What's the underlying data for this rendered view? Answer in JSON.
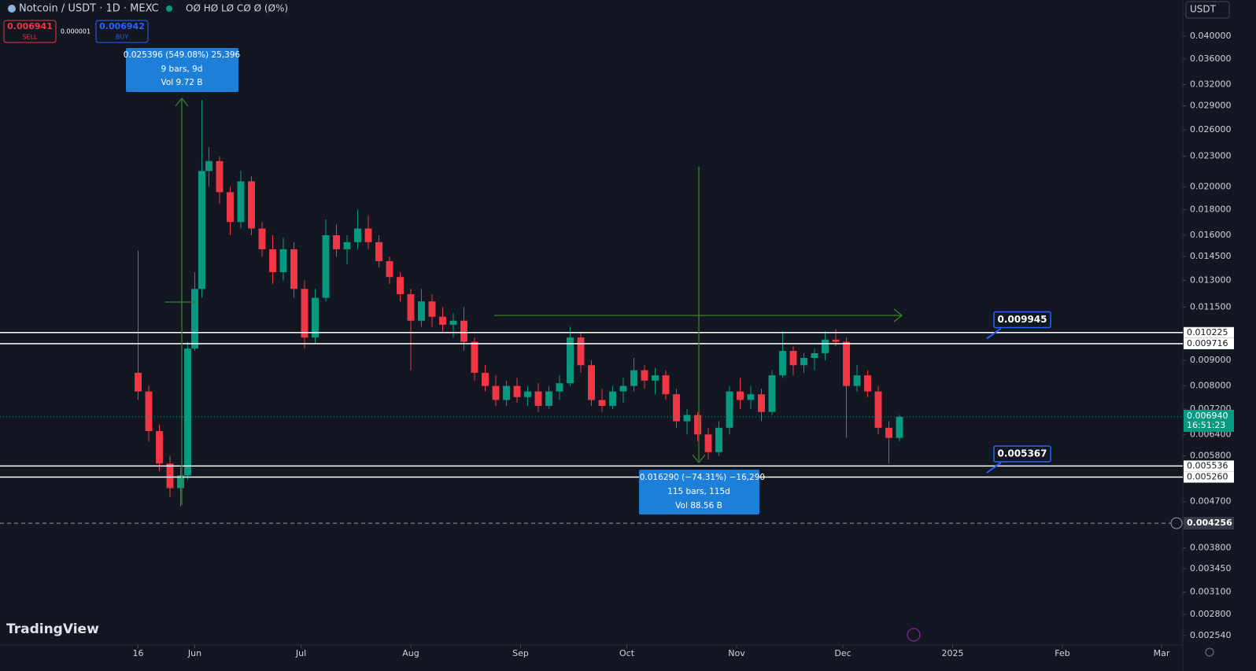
{
  "header": {
    "symbol": "Notcoin / USDT · 1D · MEXC",
    "ohlc": "OØ HØ LØ CØ Ø (Ø%)",
    "sell_price": "0.006941",
    "sell_label": "SELL",
    "spread": "0.000001",
    "buy_price": "0.006942",
    "buy_label": "BUY",
    "currency": "USDT"
  },
  "chart_data": {
    "type": "candlestick",
    "log_scale": true,
    "up_color": "#089981",
    "down_color": "#f23645",
    "x": [
      0,
      3,
      6,
      9,
      12,
      14,
      16,
      18,
      20,
      23,
      26,
      29,
      32,
      35,
      38,
      41,
      44,
      47,
      50,
      53,
      56,
      59,
      62,
      65,
      68,
      71,
      74,
      77,
      80,
      83,
      86,
      89,
      92,
      95,
      98,
      101,
      104,
      107,
      110,
      113,
      116,
      119,
      122,
      125,
      128,
      131,
      134,
      137,
      140,
      143,
      146,
      149,
      152,
      155,
      158,
      161,
      164,
      167,
      170,
      173,
      176,
      179,
      182,
      185,
      188,
      191,
      194,
      197,
      200,
      203,
      206,
      209,
      212,
      215
    ],
    "candles": [
      [
        0.0085,
        0.0149,
        0.0075,
        0.0078
      ],
      [
        0.0078,
        0.008,
        0.0062,
        0.0065
      ],
      [
        0.0065,
        0.0067,
        0.0054,
        0.0056
      ],
      [
        0.0056,
        0.0058,
        0.0048,
        0.005
      ],
      [
        0.005,
        0.0055,
        0.0046,
        0.0053
      ],
      [
        0.0053,
        0.0098,
        0.0052,
        0.0095
      ],
      [
        0.0095,
        0.0135,
        0.0094,
        0.0125
      ],
      [
        0.0125,
        0.0298,
        0.012,
        0.0215
      ],
      [
        0.0215,
        0.024,
        0.02,
        0.0225
      ],
      [
        0.0225,
        0.023,
        0.0185,
        0.0195
      ],
      [
        0.0195,
        0.02,
        0.016,
        0.017
      ],
      [
        0.017,
        0.0215,
        0.0165,
        0.0205
      ],
      [
        0.0205,
        0.021,
        0.016,
        0.0165
      ],
      [
        0.0165,
        0.017,
        0.0145,
        0.015
      ],
      [
        0.015,
        0.016,
        0.0128,
        0.0135
      ],
      [
        0.0135,
        0.0158,
        0.013,
        0.015
      ],
      [
        0.015,
        0.0155,
        0.012,
        0.0125
      ],
      [
        0.0125,
        0.013,
        0.0095,
        0.01
      ],
      [
        0.01,
        0.0125,
        0.0097,
        0.012
      ],
      [
        0.012,
        0.0172,
        0.0118,
        0.016
      ],
      [
        0.016,
        0.0168,
        0.0145,
        0.015
      ],
      [
        0.015,
        0.016,
        0.014,
        0.0155
      ],
      [
        0.0155,
        0.018,
        0.015,
        0.0165
      ],
      [
        0.0165,
        0.0175,
        0.015,
        0.0155
      ],
      [
        0.0155,
        0.016,
        0.0138,
        0.0142
      ],
      [
        0.0142,
        0.0145,
        0.0128,
        0.0132
      ],
      [
        0.0132,
        0.0135,
        0.0118,
        0.0122
      ],
      [
        0.0122,
        0.0125,
        0.0086,
        0.0108
      ],
      [
        0.0108,
        0.0125,
        0.0105,
        0.0118
      ],
      [
        0.0118,
        0.0122,
        0.0105,
        0.011
      ],
      [
        0.011,
        0.0115,
        0.0102,
        0.0106
      ],
      [
        0.0106,
        0.0112,
        0.01,
        0.0108
      ],
      [
        0.0108,
        0.0115,
        0.0094,
        0.0098
      ],
      [
        0.0098,
        0.01,
        0.0082,
        0.0085
      ],
      [
        0.0085,
        0.0088,
        0.0078,
        0.008
      ],
      [
        0.008,
        0.0084,
        0.0073,
        0.0075
      ],
      [
        0.0075,
        0.0082,
        0.0073,
        0.008
      ],
      [
        0.008,
        0.0083,
        0.0074,
        0.0076
      ],
      [
        0.0076,
        0.008,
        0.0073,
        0.0078
      ],
      [
        0.0078,
        0.0081,
        0.0071,
        0.0073
      ],
      [
        0.0073,
        0.008,
        0.0072,
        0.0078
      ],
      [
        0.0078,
        0.0084,
        0.0075,
        0.0081
      ],
      [
        0.0081,
        0.0105,
        0.008,
        0.01
      ],
      [
        0.01,
        0.0102,
        0.0085,
        0.0088
      ],
      [
        0.0088,
        0.009,
        0.0073,
        0.0075
      ],
      [
        0.0075,
        0.0079,
        0.0071,
        0.0073
      ],
      [
        0.0073,
        0.008,
        0.0072,
        0.0078
      ],
      [
        0.0078,
        0.0083,
        0.0074,
        0.008
      ],
      [
        0.008,
        0.0091,
        0.0078,
        0.0086
      ],
      [
        0.0086,
        0.0088,
        0.0079,
        0.0082
      ],
      [
        0.0082,
        0.0087,
        0.0077,
        0.0084
      ],
      [
        0.0084,
        0.0086,
        0.0075,
        0.0077
      ],
      [
        0.0077,
        0.0079,
        0.0066,
        0.0068
      ],
      [
        0.0068,
        0.0072,
        0.0064,
        0.007
      ],
      [
        0.007,
        0.0071,
        0.0062,
        0.0064
      ],
      [
        0.0064,
        0.0066,
        0.0057,
        0.0059
      ],
      [
        0.0059,
        0.0068,
        0.0058,
        0.0066
      ],
      [
        0.0066,
        0.008,
        0.0064,
        0.0078
      ],
      [
        0.0078,
        0.0083,
        0.0072,
        0.0075
      ],
      [
        0.0075,
        0.008,
        0.0072,
        0.0077
      ],
      [
        0.0077,
        0.0079,
        0.0068,
        0.0071
      ],
      [
        0.0071,
        0.0086,
        0.007,
        0.0084
      ],
      [
        0.0084,
        0.0103,
        0.0083,
        0.0094
      ],
      [
        0.0094,
        0.0096,
        0.0084,
        0.0088
      ],
      [
        0.0088,
        0.0093,
        0.0085,
        0.0091
      ],
      [
        0.0091,
        0.0095,
        0.0086,
        0.0093
      ],
      [
        0.0093,
        0.0103,
        0.009,
        0.0099
      ],
      [
        0.0099,
        0.0104,
        0.0096,
        0.0098
      ],
      [
        0.0098,
        0.01,
        0.0063,
        0.008
      ],
      [
        0.008,
        0.0088,
        0.0078,
        0.0084
      ],
      [
        0.0084,
        0.0086,
        0.0076,
        0.0078
      ],
      [
        0.0078,
        0.008,
        0.0064,
        0.0066
      ],
      [
        0.0066,
        0.0068,
        0.0056,
        0.0063
      ],
      [
        0.0063,
        0.007,
        0.0062,
        0.00694
      ]
    ],
    "xlim": [
      -39,
      295
    ],
    "xticks": [
      {
        "value": 0,
        "label": "16"
      },
      {
        "value": 16,
        "label": "Jun"
      },
      {
        "value": 46,
        "label": "Jul"
      },
      {
        "value": 77,
        "label": "Aug"
      },
      {
        "value": 108,
        "label": "Sep"
      },
      {
        "value": 138,
        "label": "Oct"
      },
      {
        "value": 169,
        "label": "Nov"
      },
      {
        "value": 199,
        "label": "Dec"
      },
      {
        "value": 230,
        "label": "2025"
      },
      {
        "value": 261,
        "label": "Feb"
      },
      {
        "value": 289,
        "label": "Mar"
      }
    ],
    "ylim": [
      0.00243,
      0.0472
    ],
    "yticks": [
      {
        "value": 0.04,
        "label": "0.040000"
      },
      {
        "value": 0.036,
        "label": "0.036000"
      },
      {
        "value": 0.032,
        "label": "0.032000"
      },
      {
        "value": 0.029,
        "label": "0.029000"
      },
      {
        "value": 0.026,
        "label": "0.026000"
      },
      {
        "value": 0.023,
        "label": "0.023000"
      },
      {
        "value": 0.02,
        "label": "0.020000"
      },
      {
        "value": 0.018,
        "label": "0.018000"
      },
      {
        "value": 0.016,
        "label": "0.016000"
      },
      {
        "value": 0.0145,
        "label": "0.014500"
      },
      {
        "value": 0.013,
        "label": "0.013000"
      },
      {
        "value": 0.0115,
        "label": "0.011500"
      },
      {
        "value": 0.009,
        "label": "0.009000"
      },
      {
        "value": 0.008,
        "label": "0.008000"
      },
      {
        "value": 0.0072,
        "label": "0.007200"
      },
      {
        "value": 0.0064,
        "label": "0.006400"
      },
      {
        "value": 0.0058,
        "label": "0.005800"
      },
      {
        "value": 0.0047,
        "label": "0.004700"
      },
      {
        "value": 0.0038,
        "label": "0.003800"
      },
      {
        "value": 0.00345,
        "label": "0.003450"
      },
      {
        "value": 0.0031,
        "label": "0.003100"
      },
      {
        "value": 0.0028,
        "label": "0.002800"
      },
      {
        "value": 0.00254,
        "label": "0.002540"
      }
    ],
    "hlines": [
      {
        "value": 0.010225,
        "label": "0.010225"
      },
      {
        "value": 0.009716,
        "label": "0.009716"
      },
      {
        "value": 0.005536,
        "label": "0.005536"
      },
      {
        "value": 0.00526,
        "label": "0.005260"
      }
    ],
    "alerts": [
      {
        "value": 0.009945,
        "label": "0.009945"
      },
      {
        "value": 0.005367,
        "label": "0.005367"
      }
    ],
    "last_price": {
      "value": 0.00694,
      "label": "0.006940"
    },
    "countdown": "16:51:23",
    "crosshair": {
      "value": 0.004256,
      "label": "0.004256"
    },
    "measurements": [
      [
        "0.025396 (549.08%) 25,396",
        "9 bars, 9d",
        "Vol 9.72 B"
      ],
      [
        "−0.016290 (−74.31%) −16,290",
        "115 bars, 115d",
        "Vol 88.56 B"
      ]
    ]
  },
  "footer": {
    "logo": "TradingView"
  }
}
